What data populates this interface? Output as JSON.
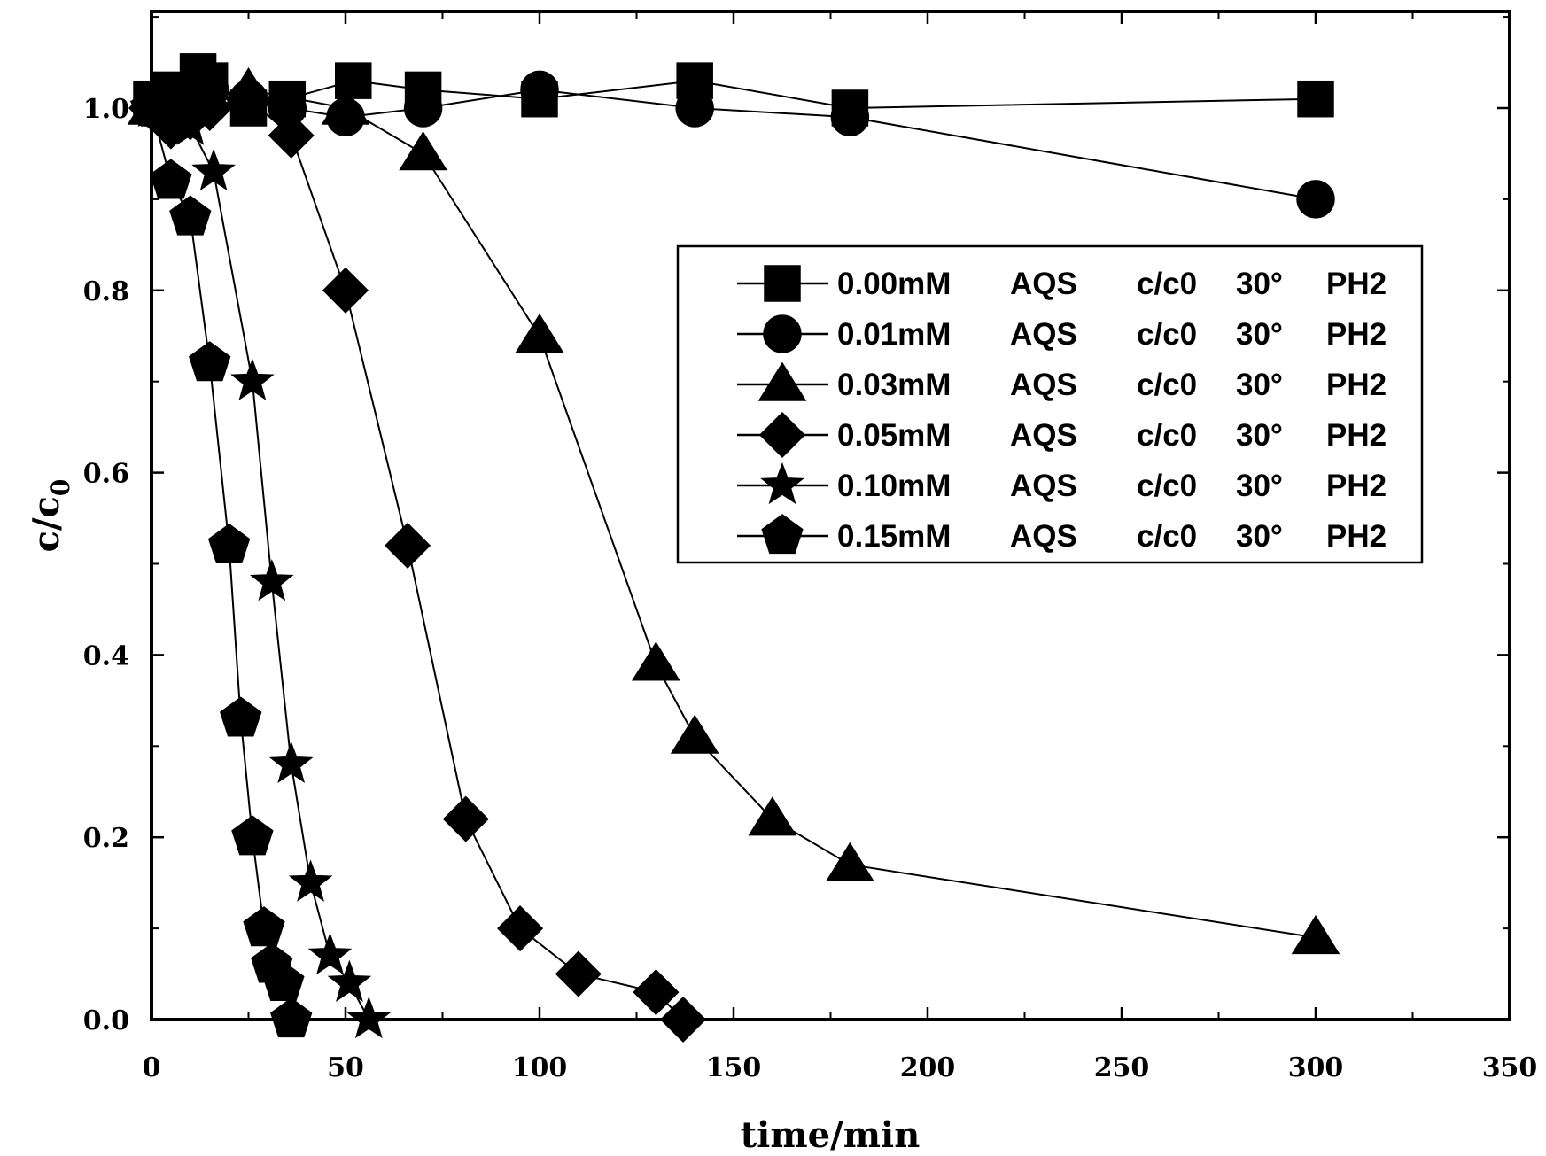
{
  "chart_data": {
    "type": "line",
    "title": "",
    "xlabel": "time/min",
    "ylabel": "c/c0",
    "ylabel_main": "c/c",
    "ylabel_sub": "0",
    "xlim": [
      0,
      350
    ],
    "ylim": [
      0,
      1.1
    ],
    "xticks": [
      0,
      50,
      100,
      150,
      200,
      250,
      300,
      350
    ],
    "xtick_labels": [
      "0",
      "50",
      "100",
      "150",
      "200",
      "250",
      "300",
      "350"
    ],
    "yticks": [
      0.0,
      0.2,
      0.4,
      0.6,
      0.8,
      1.0
    ],
    "ytick_labels": [
      "0.0",
      "0.2",
      "0.4",
      "0.6",
      "0.8",
      "1.0"
    ],
    "grid": false,
    "legend_position": "upper right",
    "series": [
      {
        "name": "0.00mM AQS c/c0 30° PH2",
        "label_parts": [
          "0.00mM",
          "AQS",
          "c/c0",
          "30°",
          "PH2"
        ],
        "marker": "square",
        "x": [
          0,
          2,
          5,
          8,
          12,
          15,
          25,
          35,
          52,
          70,
          100,
          140,
          180,
          300
        ],
        "y": [
          1.01,
          1.0,
          1.02,
          1.01,
          1.04,
          1.03,
          1.0,
          1.01,
          1.03,
          1.02,
          1.01,
          1.03,
          1.0,
          1.01
        ]
      },
      {
        "name": "0.01mM AQS c/c0 30° PH2",
        "label_parts": [
          "0.01mM",
          "AQS",
          "c/c0",
          "30°",
          "PH2"
        ],
        "marker": "circle",
        "x": [
          0,
          5,
          10,
          15,
          25,
          35,
          50,
          70,
          100,
          140,
          180,
          300
        ],
        "y": [
          1.0,
          1.01,
          1.0,
          1.02,
          1.01,
          1.0,
          0.99,
          1.0,
          1.02,
          1.0,
          0.99,
          0.9
        ]
      },
      {
        "name": "0.03mM AQS c/c0 30° PH2",
        "label_parts": [
          "0.03mM",
          "AQS",
          "c/c0",
          "30°",
          "PH2"
        ],
        "marker": "triangle",
        "x": [
          0,
          10,
          25,
          50,
          70,
          100,
          130,
          140,
          160,
          180,
          300
        ],
        "y": [
          1.0,
          1.01,
          1.02,
          1.0,
          0.95,
          0.75,
          0.39,
          0.31,
          0.22,
          0.17,
          0.09
        ]
      },
      {
        "name": "0.05mM AQS c/c0 30° PH2",
        "label_parts": [
          "0.05mM",
          "AQS",
          "c/c0",
          "30°",
          "PH2"
        ],
        "marker": "diamond",
        "x": [
          0,
          5,
          10,
          15,
          25,
          36,
          50,
          66,
          81,
          95,
          110,
          130,
          137
        ],
        "y": [
          1.0,
          0.98,
          0.99,
          1.0,
          1.01,
          0.97,
          0.8,
          0.52,
          0.22,
          0.1,
          0.05,
          0.03,
          0.0
        ]
      },
      {
        "name": "0.10mM AQS c/c0 30° PH2",
        "label_parts": [
          "0.10mM",
          "AQS",
          "c/c0",
          "30°",
          "PH2"
        ],
        "marker": "star",
        "x": [
          0,
          5,
          10,
          16,
          26,
          31,
          36,
          41,
          46,
          51,
          56
        ],
        "y": [
          1.0,
          0.99,
          0.98,
          0.93,
          0.7,
          0.48,
          0.28,
          0.15,
          0.07,
          0.04,
          0.0
        ]
      },
      {
        "name": "0.15mM AQS c/c0 30° PH2",
        "label_parts": [
          "0.15mM",
          "AQS",
          "c/c0",
          "30°",
          "PH2"
        ],
        "marker": "pentagon",
        "x": [
          0,
          5,
          10,
          15,
          20,
          23,
          26,
          29,
          31,
          34,
          36
        ],
        "y": [
          1.0,
          0.92,
          0.88,
          0.72,
          0.52,
          0.33,
          0.2,
          0.1,
          0.06,
          0.04,
          0.0
        ]
      }
    ]
  }
}
